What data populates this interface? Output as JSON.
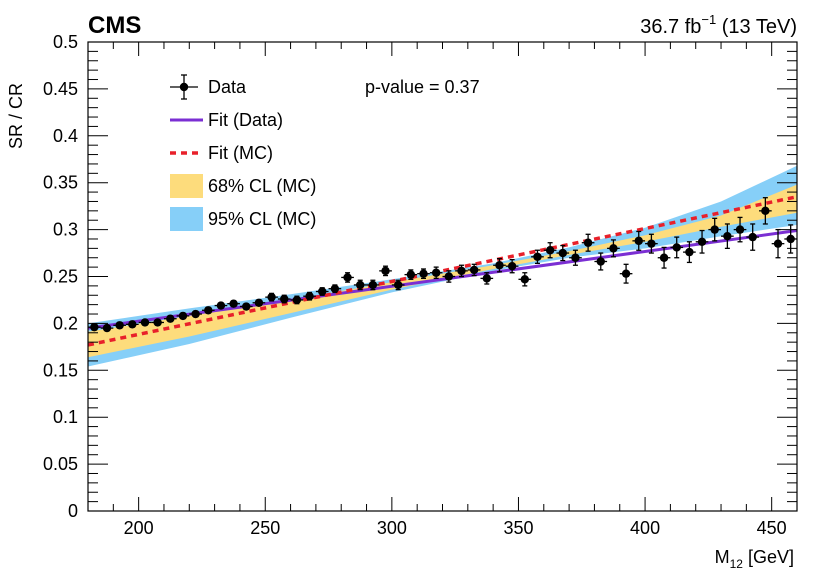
{
  "header": {
    "experiment": "CMS",
    "lumi_value": "36.7 fb",
    "lumi_exponent": "−1",
    "energy": " (13 TeV)"
  },
  "annotation": {
    "pvalue": "p-value = 0.37"
  },
  "colors": {
    "data": "#000000",
    "fit_data": "#7b2fd3",
    "fit_mc": "#e8202a",
    "cl68": "#fddc7c",
    "cl95": "#86cff8"
  },
  "chart_data": {
    "type": "scatter",
    "xlabel_main": "M",
    "xlabel_sub": "12",
    "xlabel_unit": " [GeV]",
    "ylabel": "SR / CR",
    "xlim": [
      180,
      460
    ],
    "ylim": [
      0,
      0.5
    ],
    "x_ticks": [
      200,
      250,
      300,
      350,
      400,
      450
    ],
    "y_ticks": [
      0,
      0.05,
      0.1,
      0.15,
      0.2,
      0.25,
      0.3,
      0.35,
      0.4,
      0.45,
      0.5
    ],
    "grid": false,
    "legend": {
      "placement": "top-left",
      "entries": [
        {
          "key": "data",
          "label": "Data"
        },
        {
          "key": "fit_data",
          "label": "Fit (Data)"
        },
        {
          "key": "fit_mc",
          "label": "Fit (MC)"
        },
        {
          "key": "cl68",
          "label": "68% CL (MC)"
        },
        {
          "key": "cl95",
          "label": "95% CL (MC)"
        }
      ]
    },
    "data_points": {
      "x_halfwidth": 2.5,
      "x": [
        182.5,
        187.5,
        192.5,
        197.5,
        202.5,
        207.5,
        212.5,
        217.5,
        222.5,
        227.5,
        232.5,
        237.5,
        242.5,
        247.5,
        252.5,
        257.5,
        262.5,
        267.5,
        272.5,
        277.5,
        282.5,
        287.5,
        292.5,
        297.5,
        302.5,
        307.5,
        312.5,
        317.5,
        322.5,
        327.5,
        332.5,
        337.5,
        342.5,
        347.5,
        352.5,
        357.5,
        362.5,
        367.5,
        372.5,
        377.5,
        382.5,
        387.5,
        392.5,
        397.5,
        402.5,
        407.5,
        412.5,
        417.5,
        422.5,
        427.5,
        432.5,
        437.5,
        442.5,
        447.5,
        452.5,
        457.5
      ],
      "y": [
        0.196,
        0.195,
        0.198,
        0.199,
        0.201,
        0.201,
        0.205,
        0.208,
        0.21,
        0.214,
        0.219,
        0.221,
        0.218,
        0.222,
        0.228,
        0.226,
        0.225,
        0.229,
        0.234,
        0.237,
        0.249,
        0.241,
        0.241,
        0.256,
        0.241,
        0.252,
        0.253,
        0.254,
        0.25,
        0.256,
        0.257,
        0.248,
        0.262,
        0.261,
        0.247,
        0.271,
        0.278,
        0.275,
        0.27,
        0.286,
        0.266,
        0.28,
        0.253,
        0.288,
        0.285,
        0.27,
        0.281,
        0.276,
        0.287,
        0.3,
        0.293,
        0.3,
        0.292,
        0.32,
        0.285,
        0.29
      ],
      "yerr": [
        0.003,
        0.003,
        0.003,
        0.003,
        0.003,
        0.003,
        0.003,
        0.003,
        0.003,
        0.003,
        0.003,
        0.003,
        0.003,
        0.003,
        0.004,
        0.004,
        0.004,
        0.004,
        0.004,
        0.004,
        0.005,
        0.005,
        0.005,
        0.005,
        0.005,
        0.005,
        0.005,
        0.006,
        0.006,
        0.006,
        0.006,
        0.006,
        0.007,
        0.007,
        0.007,
        0.007,
        0.008,
        0.008,
        0.008,
        0.009,
        0.009,
        0.009,
        0.01,
        0.01,
        0.01,
        0.011,
        0.011,
        0.011,
        0.012,
        0.012,
        0.013,
        0.013,
        0.014,
        0.014,
        0.015,
        0.015
      ]
    },
    "fit_data": {
      "x": [
        180,
        460
      ],
      "y": [
        0.195,
        0.299
      ]
    },
    "fit_mc": {
      "x": [
        180,
        460
      ],
      "y": [
        0.177,
        0.335
      ]
    },
    "band_95": {
      "x": [
        180,
        220,
        260,
        300,
        340,
        370,
        400,
        430,
        460
      ],
      "lower": [
        0.154,
        0.178,
        0.206,
        0.233,
        0.256,
        0.27,
        0.28,
        0.293,
        0.305
      ],
      "upper": [
        0.2,
        0.216,
        0.231,
        0.247,
        0.264,
        0.281,
        0.302,
        0.33,
        0.368
      ]
    },
    "band_68": {
      "x": [
        180,
        220,
        260,
        300,
        340,
        370,
        400,
        430,
        460
      ],
      "lower": [
        0.164,
        0.186,
        0.211,
        0.236,
        0.258,
        0.273,
        0.287,
        0.303,
        0.318
      ],
      "upper": [
        0.191,
        0.208,
        0.225,
        0.244,
        0.262,
        0.277,
        0.294,
        0.315,
        0.348
      ]
    }
  }
}
